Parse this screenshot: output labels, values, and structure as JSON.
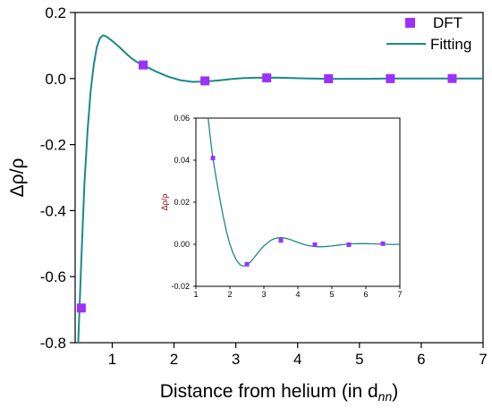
{
  "chart_data": [
    {
      "type": "scatter",
      "title": "",
      "xlabel": "Distance from helium (in d",
      "xlabel_sub": "nn",
      "xlabel_end": ")",
      "ylabel": "Δρ/ρ",
      "xlim": [
        0.4,
        7
      ],
      "ylim": [
        -0.8,
        0.2
      ],
      "xticks": [
        1,
        2,
        3,
        4,
        5,
        6,
        7
      ],
      "yticks": [
        0.2,
        0.0,
        -0.2,
        -0.4,
        -0.6,
        -0.8
      ],
      "ytick_labels": [
        "0.2",
        "0.0",
        "-0.2",
        "-0.4",
        "-0.6",
        "-0.8"
      ],
      "legend_position": "top-right",
      "series": [
        {
          "name": "DFT",
          "kind": "markers",
          "color": "#9b30ff",
          "x": [
            0.5,
            1.5,
            2.5,
            3.5,
            4.5,
            5.5,
            6.5
          ],
          "y": [
            -0.695,
            0.041,
            -0.007,
            0.002,
            -0.0005,
            -0.0002,
            0.0002
          ]
        },
        {
          "name": "Fitting",
          "kind": "line",
          "color": "#1a8a8a",
          "x": [
            0.45,
            0.5,
            0.55,
            0.6,
            0.65,
            0.7,
            0.75,
            0.8,
            0.85,
            0.9,
            1.0,
            1.1,
            1.2,
            1.3,
            1.4,
            1.5,
            1.7,
            1.9,
            2.1,
            2.3,
            2.5,
            2.7,
            2.9,
            3.1,
            3.3,
            3.5,
            3.7,
            3.9,
            4.2,
            4.5,
            4.8,
            5.1,
            5.5,
            6.0,
            6.5,
            7.0
          ],
          "y": [
            -0.8,
            -0.55,
            -0.32,
            -0.16,
            -0.04,
            0.04,
            0.095,
            0.122,
            0.131,
            0.128,
            0.114,
            0.098,
            0.08,
            0.063,
            0.05,
            0.041,
            0.022,
            0.006,
            -0.005,
            -0.01,
            -0.009,
            -0.006,
            -0.002,
            0.001,
            0.0025,
            0.003,
            0.0026,
            0.0016,
            0.0,
            -0.0008,
            -0.001,
            -0.0008,
            0.0,
            0.0002,
            0.0002,
            0.0
          ]
        }
      ]
    },
    {
      "type": "scatter",
      "title": "",
      "xlabel": "",
      "ylabel": "Δρ/ρ",
      "xlim": [
        1,
        7
      ],
      "ylim": [
        -0.02,
        0.06
      ],
      "xticks": [
        1,
        2,
        3,
        4,
        5,
        6,
        7
      ],
      "yticks": [
        -0.02,
        0.0,
        0.02,
        0.04,
        0.06
      ],
      "ytick_labels": [
        "-0.02",
        "0.00",
        "0.02",
        "0.04",
        "0.06"
      ],
      "series": [
        {
          "name": "DFT",
          "kind": "markers",
          "color": "#9b30ff",
          "x": [
            1.5,
            2.5,
            3.5,
            4.5,
            5.5,
            6.5
          ],
          "y": [
            0.041,
            -0.0095,
            0.0018,
            -0.0002,
            -0.0002,
            0.0003
          ]
        },
        {
          "name": "Fitting",
          "kind": "line",
          "color": "#1a8a8a",
          "x": [
            1.36,
            1.45,
            1.5,
            1.6,
            1.7,
            1.8,
            1.9,
            2.0,
            2.1,
            2.2,
            2.3,
            2.4,
            2.5,
            2.6,
            2.7,
            2.8,
            2.9,
            3.0,
            3.1,
            3.2,
            3.3,
            3.4,
            3.5,
            3.6,
            3.7,
            3.8,
            3.9,
            4.0,
            4.2,
            4.4,
            4.6,
            4.8,
            5.0,
            5.2,
            5.4,
            5.6,
            5.8,
            6.0,
            6.2,
            6.4,
            6.6,
            6.8,
            7.0
          ],
          "y": [
            0.06,
            0.047,
            0.041,
            0.031,
            0.022,
            0.0135,
            0.006,
            0.0,
            -0.0045,
            -0.0078,
            -0.0097,
            -0.0104,
            -0.0098,
            -0.0085,
            -0.0066,
            -0.0046,
            -0.0026,
            -0.0008,
            0.0006,
            0.0018,
            0.0026,
            0.003,
            0.0031,
            0.003,
            0.0026,
            0.0021,
            0.0015,
            0.0009,
            -0.0002,
            -0.0009,
            -0.0012,
            -0.0011,
            -0.0008,
            -0.0004,
            0.0,
            0.0002,
            0.0003,
            0.0003,
            0.0002,
            0.0001,
            0.0,
            -0.0001,
            0.0
          ]
        }
      ]
    }
  ]
}
